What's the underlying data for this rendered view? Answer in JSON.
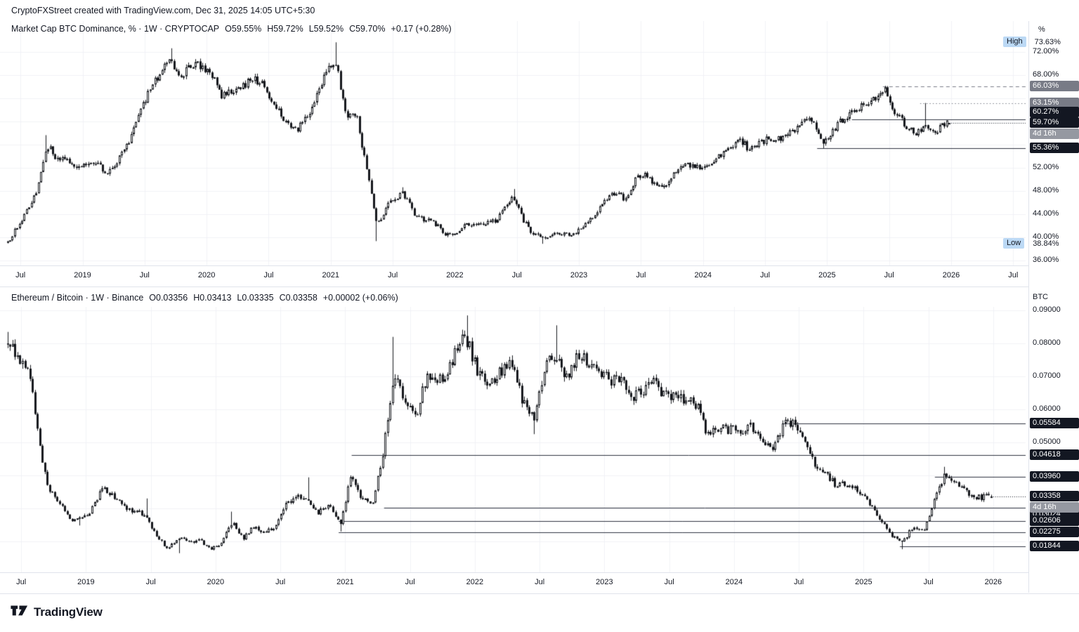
{
  "header": {
    "credit": "CryptoFXStreet created with TradingView.com, Dec 31, 2025 14:05 UTC+5:30"
  },
  "footer": {
    "brand": "TradingView"
  },
  "colors": {
    "candle": "#16181d",
    "grid": "#f0f2f6",
    "level_dark": "#2f3340",
    "level_grey": "#787b86",
    "badge_dark": "#131722",
    "badge_grey": "#787b86",
    "badge_countdown": "#9598a1",
    "highlow_bg": "#bcd9f5"
  },
  "panes": [
    {
      "axis_unit": "%",
      "legend": {
        "title": "Market Cap BTC Dominance, % · 1W · CRYPTOCAP",
        "open": "O59.55%",
        "high": "H59.72%",
        "low": "L59.52%",
        "close": "C59.70%",
        "change": "+0.17 (+0.28%)"
      }
    },
    {
      "axis_unit": "BTC",
      "legend": {
        "title": "Ethereum / Bitcoin · 1W · Binance",
        "open": "O0.03356",
        "high": "H0.03413",
        "low": "L0.03335",
        "close": "C0.03358",
        "change": "+0.00002 (+0.06%)"
      }
    }
  ],
  "chart_data": [
    {
      "type": "candlestick",
      "title": "Market Cap BTC Dominance",
      "interval": "1W",
      "unit": "%",
      "x_domain": [
        2018.38,
        2026.6
      ],
      "y_range": [
        35.1,
        77.3
      ],
      "noise": 0.011,
      "x_ticks": [
        [
          2018.5,
          "Jul"
        ],
        [
          2019,
          "2019"
        ],
        [
          2019.5,
          "Jul"
        ],
        [
          2020,
          "2020"
        ],
        [
          2020.5,
          "Jul"
        ],
        [
          2021,
          "2021"
        ],
        [
          2021.5,
          "Jul"
        ],
        [
          2022,
          "2022"
        ],
        [
          2022.5,
          "Jul"
        ],
        [
          2023,
          "2023"
        ],
        [
          2023.5,
          "Jul"
        ],
        [
          2024,
          "2024"
        ],
        [
          2024.5,
          "Jul"
        ],
        [
          2025,
          "2025"
        ],
        [
          2025.5,
          "Jul"
        ],
        [
          2026,
          "2026"
        ],
        [
          2026.5,
          "Jul"
        ]
      ],
      "y_ticks": [
        {
          "v": 72,
          "label": "72.00%"
        },
        {
          "v": 68,
          "label": "68.00%"
        },
        {
          "v": 52,
          "label": "52.00%"
        },
        {
          "v": 48,
          "label": "48.00%"
        },
        {
          "v": 44,
          "label": "44.00%"
        },
        {
          "v": 40,
          "label": "40.00%"
        },
        {
          "v": 36,
          "label": "36.00%"
        }
      ],
      "y_grid": [
        36,
        40,
        44,
        48,
        52,
        56,
        60,
        64,
        68,
        72
      ],
      "range_high": {
        "v": 73.63,
        "label": "High",
        "value": "73.63%"
      },
      "range_low": {
        "v": 38.84,
        "label": "Low",
        "value": "38.84%"
      },
      "last": {
        "o": 59.55,
        "h": 59.72,
        "l": 59.52,
        "c": 59.7,
        "label": "59.70%",
        "countdown": "4d 16h"
      },
      "levels": [
        {
          "v": 66.03,
          "label": "66.03%",
          "from": 2025.45,
          "style": "dashed",
          "tone": "grey"
        },
        {
          "v": 63.15,
          "label": "63.15%",
          "from": 2025.75,
          "style": "dotted",
          "tone": "grey"
        },
        {
          "v": 60.27,
          "label": "60.27%",
          "from": 2025.2,
          "style": "solid",
          "tone": "dark",
          "dy": -10
        },
        {
          "v": 55.36,
          "label": "55.36%",
          "from": 2024.92,
          "style": "solid",
          "tone": "dark"
        }
      ],
      "monthly_anchors": [
        [
          2018.395,
          39.2,
          null,
          38.9
        ],
        [
          2018.48,
          42.0
        ],
        [
          2018.56,
          45.0
        ],
        [
          2018.63,
          48.0
        ],
        [
          2018.71,
          56.0,
          57.6,
          null
        ],
        [
          2018.79,
          53.5
        ],
        [
          2018.875,
          53.2
        ],
        [
          2018.96,
          52.3
        ],
        [
          2019.04,
          52.9
        ],
        [
          2019.125,
          52.4
        ],
        [
          2019.21,
          50.9
        ],
        [
          2019.29,
          53.6
        ],
        [
          2019.375,
          56.5
        ],
        [
          2019.46,
          61.5
        ],
        [
          2019.54,
          65.3
        ],
        [
          2019.625,
          68.3
        ],
        [
          2019.71,
          70.5,
          72.6,
          null
        ],
        [
          2019.79,
          68.0
        ],
        [
          2019.875,
          69.5
        ],
        [
          2019.96,
          69.7
        ],
        [
          2020.04,
          68.0
        ],
        [
          2020.125,
          64.2
        ],
        [
          2020.21,
          65.5
        ],
        [
          2020.29,
          66.2
        ],
        [
          2020.375,
          67.5
        ],
        [
          2020.46,
          66.0
        ],
        [
          2020.54,
          63.0
        ],
        [
          2020.625,
          60.5
        ],
        [
          2020.71,
          58.2
        ],
        [
          2020.79,
          60.5
        ],
        [
          2020.875,
          63.5
        ],
        [
          2020.96,
          69.0
        ],
        [
          2021.04,
          70.0,
          73.63,
          null
        ],
        [
          2021.125,
          61.3
        ],
        [
          2021.21,
          60.5
        ],
        [
          2021.29,
          51.5
        ],
        [
          2021.375,
          42.0,
          null,
          39.3
        ],
        [
          2021.46,
          46.0
        ],
        [
          2021.58,
          47.6,
          48.6,
          null
        ],
        [
          2021.67,
          44.0
        ],
        [
          2021.75,
          43.0
        ],
        [
          2021.83,
          42.5
        ],
        [
          2021.92,
          40.6
        ],
        [
          2022.0,
          40.3
        ],
        [
          2022.08,
          42.0
        ],
        [
          2022.17,
          42.6
        ],
        [
          2022.25,
          42.3
        ],
        [
          2022.33,
          43.0
        ],
        [
          2022.42,
          45.6
        ],
        [
          2022.47,
          47.0,
          48.3,
          null
        ],
        [
          2022.54,
          43.3
        ],
        [
          2022.625,
          40.5
        ],
        [
          2022.71,
          39.7,
          null,
          38.84
        ],
        [
          2022.79,
          40.3
        ],
        [
          2022.875,
          40.7
        ],
        [
          2022.96,
          40.4
        ],
        [
          2023.04,
          42.2
        ],
        [
          2023.125,
          43.5
        ],
        [
          2023.21,
          46.2
        ],
        [
          2023.29,
          47.8
        ],
        [
          2023.375,
          46.6
        ],
        [
          2023.46,
          50.0
        ],
        [
          2023.54,
          50.8
        ],
        [
          2023.625,
          48.9
        ],
        [
          2023.71,
          49.3
        ],
        [
          2023.79,
          51.8
        ],
        [
          2023.875,
          52.5
        ],
        [
          2023.96,
          52.2
        ],
        [
          2024.04,
          52.3
        ],
        [
          2024.125,
          53.8
        ],
        [
          2024.21,
          55.0
        ],
        [
          2024.29,
          56.8
        ],
        [
          2024.375,
          55.2
        ],
        [
          2024.46,
          56.2
        ],
        [
          2024.54,
          57.2
        ],
        [
          2024.625,
          57.2
        ],
        [
          2024.71,
          58.2
        ],
        [
          2024.79,
          59.5
        ],
        [
          2024.875,
          60.5
        ],
        [
          2024.96,
          56.5,
          null,
          55.36
        ],
        [
          2025.04,
          58.0
        ],
        [
          2025.125,
          60.5
        ],
        [
          2025.21,
          61.5
        ],
        [
          2025.29,
          62.8
        ],
        [
          2025.375,
          64.0
        ],
        [
          2025.47,
          65.2,
          66.03,
          null
        ],
        [
          2025.54,
          62.0
        ],
        [
          2025.625,
          59.5
        ],
        [
          2025.71,
          57.8
        ],
        [
          2025.79,
          59.0,
          63.15,
          null
        ],
        [
          2025.875,
          58.5
        ],
        [
          2025.96,
          59.6
        ]
      ]
    },
    {
      "type": "candlestick",
      "title": "Ethereum / Bitcoin",
      "interval": "1W",
      "unit": "BTC",
      "x_domain": [
        2018.38,
        2026.25
      ],
      "y_range": [
        0.0106,
        0.0911
      ],
      "noise": 0.028,
      "x_ticks": [
        [
          2018.5,
          "Jul"
        ],
        [
          2019,
          "2019"
        ],
        [
          2019.5,
          "Jul"
        ],
        [
          2020,
          "2020"
        ],
        [
          2020.5,
          "Jul"
        ],
        [
          2021,
          "2021"
        ],
        [
          2021.5,
          "Jul"
        ],
        [
          2022,
          "2022"
        ],
        [
          2022.5,
          "Jul"
        ],
        [
          2023,
          "2023"
        ],
        [
          2023.5,
          "Jul"
        ],
        [
          2024,
          "2024"
        ],
        [
          2024.5,
          "Jul"
        ],
        [
          2025,
          "2025"
        ],
        [
          2025.5,
          "Jul"
        ],
        [
          2026,
          "2026"
        ]
      ],
      "y_ticks": [
        {
          "v": 0.09,
          "label": "0.09000"
        },
        {
          "v": 0.08,
          "label": "0.08000"
        },
        {
          "v": 0.07,
          "label": "0.07000"
        },
        {
          "v": 0.06,
          "label": "0.06000"
        },
        {
          "v": 0.05,
          "label": "0.05000"
        }
      ],
      "y_grid": [
        0.02,
        0.03,
        0.04,
        0.05,
        0.06,
        0.07,
        0.08,
        0.09
      ],
      "last": {
        "o": 0.03356,
        "h": 0.03413,
        "l": 0.03335,
        "c": 0.03358,
        "label": "0.03358",
        "countdown": "4d 16h"
      },
      "levels": [
        {
          "v": 0.05584,
          "label": "0.05584",
          "from": 2024.38,
          "style": "solid",
          "tone": "dark"
        },
        {
          "v": 0.04618,
          "label": "0.04618",
          "from": 2021.05,
          "style": "solid",
          "tone": "dark"
        },
        {
          "v": 0.0396,
          "label": "0.03960",
          "from": 2025.55,
          "style": "solid",
          "tone": "dark"
        },
        {
          "v": 0.03024,
          "label": "0.03024",
          "from": 2021.3,
          "style": "solid",
          "tone": "dark",
          "dy": 10
        },
        {
          "v": 0.02606,
          "label": "0.02606",
          "from": 2020.95,
          "style": "solid",
          "tone": "dark"
        },
        {
          "v": 0.02275,
          "label": "0.02275",
          "from": 2020.95,
          "style": "solid",
          "tone": "dark"
        },
        {
          "v": 0.01844,
          "label": "0.01844",
          "from": 2025.28,
          "style": "solid",
          "tone": "dark"
        }
      ],
      "monthly_anchors": [
        [
          2018.395,
          0.08,
          0.0835,
          null
        ],
        [
          2018.48,
          0.076
        ],
        [
          2018.56,
          0.0735
        ],
        [
          2018.63,
          0.052
        ],
        [
          2018.68,
          0.0405
        ],
        [
          2018.71,
          0.0358
        ],
        [
          2018.79,
          0.0318
        ],
        [
          2018.875,
          0.0268
        ],
        [
          2018.96,
          0.0268,
          null,
          0.0248
        ],
        [
          2019.04,
          0.0296
        ],
        [
          2019.125,
          0.0362
        ],
        [
          2019.21,
          0.0338
        ],
        [
          2019.29,
          0.0302
        ],
        [
          2019.375,
          0.0292
        ],
        [
          2019.46,
          0.0276,
          0.033,
          null
        ],
        [
          2019.54,
          0.0217
        ],
        [
          2019.625,
          0.0178
        ],
        [
          2019.71,
          0.0212,
          null,
          0.0164
        ],
        [
          2019.79,
          0.0196
        ],
        [
          2019.875,
          0.0203
        ],
        [
          2019.96,
          0.0176
        ],
        [
          2020.04,
          0.0193
        ],
        [
          2020.125,
          0.0258,
          0.029,
          null
        ],
        [
          2020.21,
          0.0208
        ],
        [
          2020.29,
          0.0243
        ],
        [
          2020.375,
          0.0226
        ],
        [
          2020.46,
          0.0244
        ],
        [
          2020.54,
          0.031
        ],
        [
          2020.625,
          0.0337
        ],
        [
          2020.71,
          0.033,
          0.0394,
          null
        ],
        [
          2020.79,
          0.0286
        ],
        [
          2020.875,
          0.0312
        ],
        [
          2020.96,
          0.0253,
          null,
          0.023
        ],
        [
          2021.04,
          0.0397
        ],
        [
          2021.125,
          0.033
        ],
        [
          2021.21,
          0.0312
        ],
        [
          2021.29,
          0.0465
        ],
        [
          2021.375,
          0.07,
          0.082,
          null
        ],
        [
          2021.46,
          0.0625
        ],
        [
          2021.54,
          0.0572
        ],
        [
          2021.625,
          0.0695
        ],
        [
          2021.71,
          0.07
        ],
        [
          2021.79,
          0.0705
        ],
        [
          2021.875,
          0.0812
        ],
        [
          2021.95,
          0.0795,
          0.0885,
          null
        ],
        [
          2022.04,
          0.0697
        ],
        [
          2022.125,
          0.0678
        ],
        [
          2022.21,
          0.0718
        ],
        [
          2022.29,
          0.0737
        ],
        [
          2022.375,
          0.0615
        ],
        [
          2022.46,
          0.057,
          null,
          0.0525
        ],
        [
          2022.54,
          0.0733
        ],
        [
          2022.64,
          0.0772,
          0.0855,
          null
        ],
        [
          2022.71,
          0.0687
        ],
        [
          2022.79,
          0.0763
        ],
        [
          2022.875,
          0.0745
        ],
        [
          2022.96,
          0.0725
        ],
        [
          2023.04,
          0.0687
        ],
        [
          2023.125,
          0.0697
        ],
        [
          2023.21,
          0.0643
        ],
        [
          2023.29,
          0.0649
        ],
        [
          2023.375,
          0.0692
        ],
        [
          2023.46,
          0.0636
        ],
        [
          2023.54,
          0.0641
        ],
        [
          2023.625,
          0.0634
        ],
        [
          2023.71,
          0.0617
        ],
        [
          2023.79,
          0.0523
        ],
        [
          2023.875,
          0.0546
        ],
        [
          2023.96,
          0.054
        ],
        [
          2024.04,
          0.0536
        ],
        [
          2024.125,
          0.0549
        ],
        [
          2024.21,
          0.0514
        ],
        [
          2024.29,
          0.0471
        ],
        [
          2024.385,
          0.0557,
          0.0558,
          null
        ],
        [
          2024.46,
          0.0553
        ],
        [
          2024.54,
          0.0513
        ],
        [
          2024.625,
          0.0427
        ],
        [
          2024.71,
          0.0404
        ],
        [
          2024.79,
          0.0369
        ],
        [
          2024.875,
          0.0376
        ],
        [
          2024.96,
          0.0356
        ],
        [
          2025.04,
          0.0318
        ],
        [
          2025.125,
          0.0264
        ],
        [
          2025.21,
          0.022
        ],
        [
          2025.29,
          0.0192,
          null,
          0.0176
        ],
        [
          2025.375,
          0.0242
        ],
        [
          2025.46,
          0.0228
        ],
        [
          2025.54,
          0.0318
        ],
        [
          2025.625,
          0.0408,
          0.0426,
          null
        ],
        [
          2025.71,
          0.0382
        ],
        [
          2025.79,
          0.0352
        ],
        [
          2025.875,
          0.0333
        ],
        [
          2025.96,
          0.0336
        ]
      ]
    }
  ]
}
